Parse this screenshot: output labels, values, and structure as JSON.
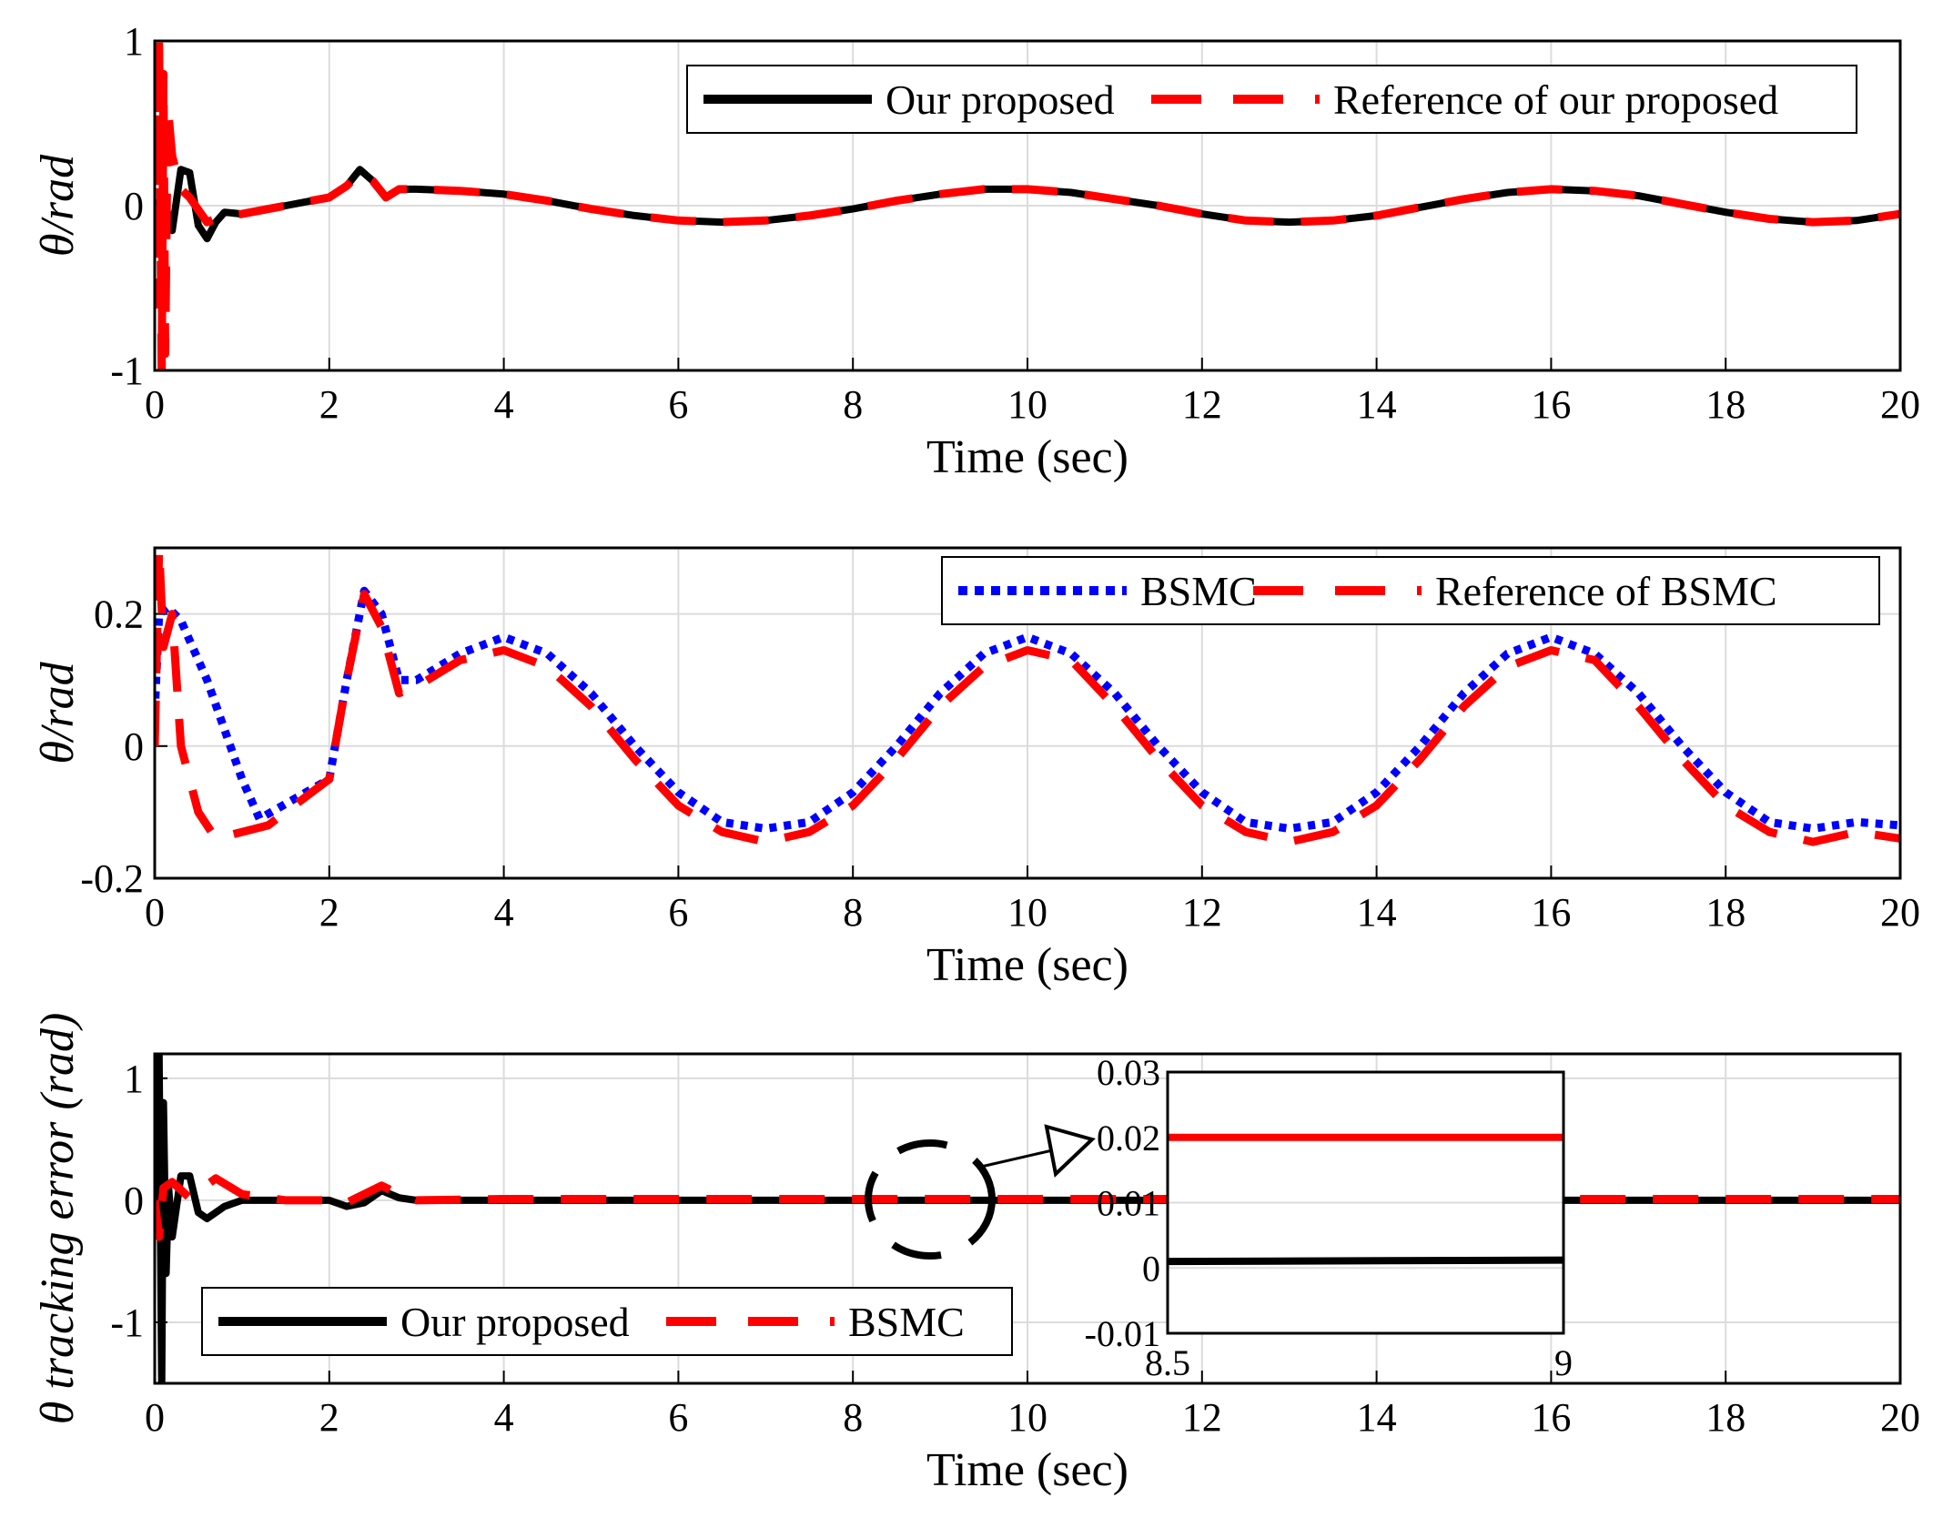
{
  "chart_data": [
    {
      "type": "line",
      "xlabel": "Time (sec)",
      "ylabel": "θ/rad",
      "xlim": [
        0,
        20
      ],
      "ylim": [
        -1,
        1
      ],
      "xticks": [
        "0",
        "2",
        "4",
        "6",
        "8",
        "10",
        "12",
        "14",
        "16",
        "18",
        "20"
      ],
      "yticks": [
        "-1",
        "0",
        "1"
      ],
      "grid": true,
      "legend": "top-right",
      "series": [
        {
          "name": "Our proposed",
          "color": "#000000",
          "style": "solid",
          "x": [
            0,
            0.1,
            0.2,
            0.3,
            0.4,
            0.5,
            0.6,
            0.7,
            0.8,
            1,
            1.5,
            2,
            2.2,
            2.35,
            2.5,
            2.65,
            2.8,
            3,
            3.5,
            4,
            4.5,
            5,
            5.5,
            6,
            6.5,
            7,
            7.5,
            8,
            8.5,
            9,
            9.5,
            10,
            10.5,
            11,
            11.5,
            12,
            12.5,
            13,
            13.5,
            14,
            14.5,
            15,
            15.5,
            16,
            16.5,
            17,
            17.5,
            18,
            18.5,
            19,
            19.5,
            20
          ],
          "y": [
            0,
            0.05,
            -0.15,
            0.22,
            0.2,
            -0.12,
            -0.2,
            -0.1,
            -0.04,
            -0.05,
            0,
            0.05,
            0.12,
            0.22,
            0.15,
            0.05,
            0.1,
            0.1,
            0.09,
            0.07,
            0.03,
            -0.02,
            -0.06,
            -0.09,
            -0.1,
            -0.09,
            -0.06,
            -0.02,
            0.03,
            0.07,
            0.1,
            0.1,
            0.08,
            0.04,
            0,
            -0.05,
            -0.09,
            -0.1,
            -0.09,
            -0.06,
            -0.01,
            0.04,
            0.08,
            0.1,
            0.09,
            0.06,
            0.01,
            -0.04,
            -0.08,
            -0.1,
            -0.09,
            -0.05
          ]
        },
        {
          "name": "Reference of our proposed",
          "color": "#ff0000",
          "style": "dashed",
          "x": [
            0,
            0.02,
            0.05,
            0.08,
            0.1,
            0.12,
            0.15,
            0.2,
            0.3,
            0.4,
            0.6,
            0.8,
            1,
            1.5,
            2,
            2.2,
            2.35,
            2.5,
            2.65,
            2.8,
            3,
            3.5,
            4,
            4.5,
            5,
            5.5,
            6,
            6.5,
            7,
            7.5,
            8,
            8.5,
            9,
            9.5,
            10,
            10.5,
            11,
            11.5,
            12,
            12.5,
            13,
            13.5,
            14,
            14.5,
            15,
            15.5,
            16,
            16.5,
            17,
            17.5,
            18,
            18.5,
            19,
            19.5,
            20
          ],
          "y": [
            0,
            -0.6,
            1,
            -1,
            0.8,
            -0.9,
            0.6,
            0.3,
            0.1,
            0.05,
            -0.1,
            -0.06,
            -0.05,
            0,
            0.05,
            0.12,
            0.2,
            0.15,
            0.05,
            0.1,
            0.1,
            0.09,
            0.07,
            0.03,
            -0.02,
            -0.06,
            -0.09,
            -0.1,
            -0.09,
            -0.06,
            -0.02,
            0.03,
            0.07,
            0.1,
            0.1,
            0.08,
            0.04,
            0,
            -0.05,
            -0.09,
            -0.1,
            -0.09,
            -0.06,
            -0.01,
            0.04,
            0.08,
            0.1,
            0.09,
            0.06,
            0.01,
            -0.04,
            -0.08,
            -0.1,
            -0.09,
            -0.05
          ]
        }
      ]
    },
    {
      "type": "line",
      "xlabel": "Time (sec)",
      "ylabel": "θ/rad",
      "xlim": [
        0,
        20
      ],
      "ylim": [
        -0.2,
        0.3
      ],
      "xticks": [
        "0",
        "2",
        "4",
        "6",
        "8",
        "10",
        "12",
        "14",
        "16",
        "18",
        "20"
      ],
      "yticks": [
        "-0.2",
        "0",
        "0.2"
      ],
      "grid": true,
      "legend": "top-right",
      "series": [
        {
          "name": "BSMC",
          "color": "#0000ff",
          "style": "dotted",
          "x": [
            0,
            0.05,
            0.15,
            0.3,
            0.6,
            1,
            1.2,
            1.6,
            2,
            2.2,
            2.4,
            2.6,
            2.8,
            3,
            3.5,
            4,
            4.5,
            5,
            5.5,
            6,
            6.5,
            7,
            7.5,
            8,
            8.5,
            9,
            9.5,
            10,
            10.5,
            11,
            11.5,
            12,
            12.5,
            13,
            13.5,
            14,
            14.5,
            15,
            15.5,
            16,
            16.5,
            17,
            17.5,
            18,
            18.5,
            19,
            19.5,
            20
          ],
          "y": [
            0.05,
            0.2,
            0.21,
            0.19,
            0.1,
            -0.05,
            -0.11,
            -0.08,
            -0.05,
            0.1,
            0.235,
            0.2,
            0.1,
            0.1,
            0.14,
            0.165,
            0.14,
            0.08,
            0,
            -0.07,
            -0.115,
            -0.125,
            -0.115,
            -0.07,
            0,
            0.08,
            0.14,
            0.165,
            0.14,
            0.08,
            0,
            -0.07,
            -0.115,
            -0.125,
            -0.115,
            -0.07,
            0,
            0.08,
            0.14,
            0.165,
            0.14,
            0.08,
            0,
            -0.07,
            -0.115,
            -0.125,
            -0.115,
            -0.12
          ]
        },
        {
          "name": "Reference of BSMC",
          "color": "#ff0000",
          "style": "dashed",
          "x": [
            0,
            0.05,
            0.1,
            0.2,
            0.3,
            0.5,
            0.7,
            1,
            1.3,
            1.6,
            2,
            2.2,
            2.4,
            2.6,
            2.8,
            3,
            3.5,
            4,
            4.5,
            5,
            5.5,
            6,
            6.5,
            7,
            7.5,
            8,
            8.5,
            9,
            9.5,
            10,
            10.5,
            11,
            11.5,
            12,
            12.5,
            13,
            13.5,
            14,
            14.5,
            15,
            15.5,
            16,
            16.5,
            17,
            17.5,
            18,
            18.5,
            19,
            19.5,
            20
          ],
          "y": [
            0,
            0.3,
            0.15,
            0.2,
            0,
            -0.1,
            -0.14,
            -0.13,
            -0.12,
            -0.09,
            -0.05,
            0.1,
            0.23,
            0.18,
            0.08,
            0.09,
            0.13,
            0.145,
            0.12,
            0.06,
            -0.02,
            -0.09,
            -0.13,
            -0.145,
            -0.13,
            -0.09,
            -0.02,
            0.06,
            0.12,
            0.145,
            0.13,
            0.06,
            -0.02,
            -0.09,
            -0.13,
            -0.145,
            -0.13,
            -0.09,
            -0.02,
            0.06,
            0.12,
            0.145,
            0.13,
            0.06,
            -0.02,
            -0.09,
            -0.13,
            -0.145,
            -0.13,
            -0.14
          ]
        }
      ]
    },
    {
      "type": "line",
      "xlabel": "Time (sec)",
      "ylabel": "θ tracking error (rad)",
      "xlim": [
        0,
        20
      ],
      "ylim": [
        -1.5,
        1.2
      ],
      "xticks": [
        "0",
        "2",
        "4",
        "6",
        "8",
        "10",
        "12",
        "14",
        "16",
        "18",
        "20"
      ],
      "yticks": [
        "-1",
        "0",
        "1"
      ],
      "grid": true,
      "legend": "bottom-left",
      "series": [
        {
          "name": "Our proposed",
          "color": "#000000",
          "style": "solid",
          "x": [
            0,
            0.05,
            0.08,
            0.1,
            0.13,
            0.16,
            0.2,
            0.3,
            0.4,
            0.5,
            0.6,
            0.8,
            1,
            1.5,
            2,
            2.2,
            2.4,
            2.6,
            2.8,
            3,
            4,
            6,
            8,
            10,
            12,
            14,
            16,
            18,
            20
          ],
          "y": [
            0,
            1.2,
            -1.5,
            0.8,
            -0.6,
            0.1,
            -0.3,
            0.2,
            0.2,
            -0.1,
            -0.15,
            -0.05,
            0,
            0,
            0,
            -0.05,
            -0.02,
            0.08,
            0.02,
            0,
            0,
            0,
            0,
            0,
            0,
            0,
            0,
            0,
            0
          ]
        },
        {
          "name": "BSMC",
          "color": "#ff0000",
          "style": "dashed",
          "x": [
            0,
            0.05,
            0.1,
            0.2,
            0.4,
            0.7,
            1,
            1.5,
            2,
            2.2,
            2.4,
            2.6,
            2.8,
            3,
            4,
            6,
            8,
            10,
            12,
            14,
            16,
            18,
            20
          ],
          "y": [
            0,
            -0.3,
            0.1,
            0.15,
            0.02,
            0.18,
            0.05,
            0,
            0,
            -0.02,
            0.05,
            0.12,
            0.05,
            0,
            0.01,
            0.01,
            0.01,
            0.01,
            0.01,
            0.01,
            0.01,
            0.01,
            0.01
          ]
        }
      ],
      "inset": {
        "xlim": [
          8.5,
          9
        ],
        "ylim": [
          -0.01,
          0.03
        ],
        "xticks": [
          "8.5",
          "9"
        ],
        "yticks": [
          "-0.01",
          "0",
          "0.01",
          "0.02",
          "0.03"
        ],
        "series": [
          {
            "name": "Our proposed",
            "color": "#000000",
            "x": [
              8.5,
              9
            ],
            "y": [
              0.001,
              0.0012
            ]
          },
          {
            "name": "BSMC",
            "color": "#ff0000",
            "x": [
              8.5,
              9
            ],
            "y": [
              0.02,
              0.02
            ]
          }
        ]
      }
    }
  ]
}
